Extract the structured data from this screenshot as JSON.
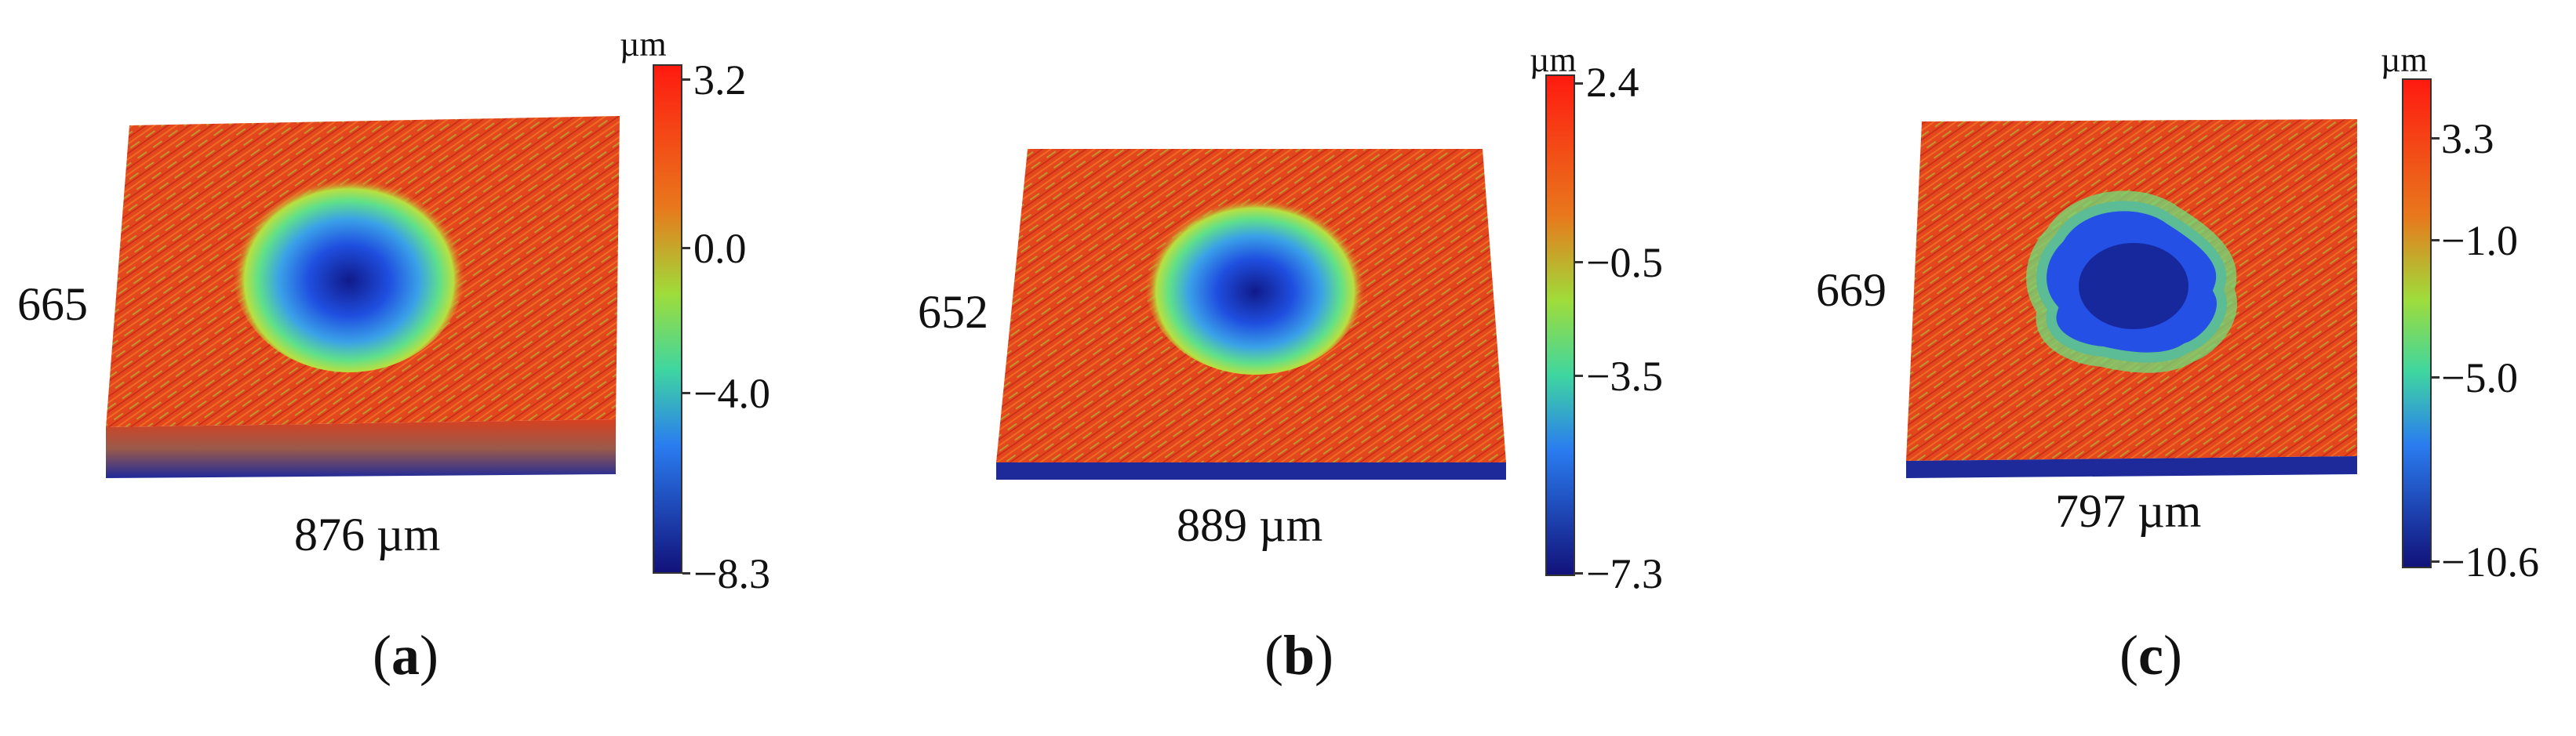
{
  "panels": [
    {
      "label": "a",
      "depth_dim": "665",
      "width_dim": "876 µm",
      "colorbar": {
        "unit": "µm",
        "ticks": [
          "3.2",
          "0.0",
          "−4.0",
          "−8.3"
        ]
      },
      "crater": "circular"
    },
    {
      "label": "b",
      "depth_dim": "652",
      "width_dim": "889 µm",
      "colorbar": {
        "unit": "µm",
        "ticks": [
          "2.4",
          "−0.5",
          "−3.5",
          "−7.3"
        ]
      },
      "crater": "circular"
    },
    {
      "label": "c",
      "depth_dim": "669",
      "width_dim": "797 µm",
      "colorbar": {
        "unit": "µm",
        "ticks": [
          "3.3",
          "−1.0",
          "−5.0",
          "−10.6"
        ]
      },
      "crater": "irregular"
    }
  ],
  "colors": {
    "high": "#e8301c",
    "mid": "#6fd84a",
    "low": "#2a5cf0",
    "lowest": "#14147a"
  }
}
